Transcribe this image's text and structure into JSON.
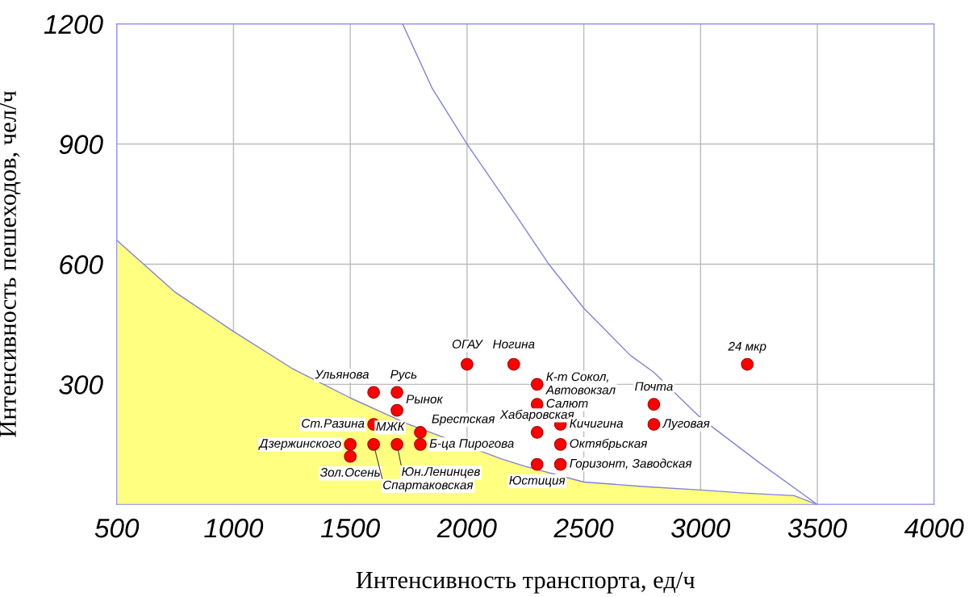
{
  "chart_data": {
    "type": "scatter",
    "xlabel": "Интенсивность транспорта, ед/ч",
    "ylabel": "Интенсивность пешеходов, чел/ч",
    "xlim": [
      500,
      4000
    ],
    "ylim": [
      0,
      1200
    ],
    "xticks": [
      500,
      1000,
      1500,
      2000,
      2500,
      3000,
      3500,
      4000
    ],
    "yticks": [
      {
        "value": 0,
        "label": null
      },
      300,
      600,
      900,
      1200
    ],
    "grid": true,
    "series": [
      {
        "type": "area",
        "color": "#ffff80",
        "x": [
          500,
          750,
          1000,
          1250,
          1500,
          1750,
          2150,
          2250,
          2500,
          2750,
          3000,
          3200,
          3400,
          3500
        ],
        "values": [
          660,
          530,
          432,
          340,
          266,
          200,
          113,
          95,
          56,
          45,
          36,
          28,
          22,
          0
        ]
      },
      {
        "type": "line",
        "color": "#8080e0",
        "x": [
          1724,
          1850,
          2000,
          2200,
          2350,
          2500,
          2700,
          2800,
          3000,
          3250,
          3500
        ],
        "values": [
          1200,
          1040,
          900,
          730,
          600,
          490,
          372,
          330,
          216,
          105,
          0
        ]
      },
      {
        "marker": "circle",
        "color": "#ff0000",
        "x": [
          2000,
          2200,
          2300,
          2300,
          2300,
          2400,
          2400,
          2400,
          2300,
          2800,
          2800,
          3200,
          1600,
          1700,
          1700,
          1600,
          1800,
          1500,
          1500,
          1700,
          1600,
          1800
        ],
        "values": [
          350,
          350,
          300,
          250,
          180,
          200,
          150,
          100,
          100,
          250,
          200,
          350,
          280,
          280,
          235,
          200,
          180,
          150,
          120,
          150,
          150,
          150
        ]
      }
    ],
    "annotations": [
      {
        "text": "ОГАУ",
        "x": 2000,
        "y": 350
      },
      {
        "text": "Ногина",
        "x": 2200,
        "y": 350
      },
      {
        "text": "К-т Сокол,\nАвтовокзал",
        "x": 2300,
        "y": 300
      },
      {
        "text": "Салют",
        "x": 2300,
        "y": 250
      },
      {
        "text": "Хабаровская",
        "x": 2300,
        "y": 180
      },
      {
        "text": "Кичигина",
        "x": 2400,
        "y": 200
      },
      {
        "text": "Октябрьская",
        "x": 2400,
        "y": 150
      },
      {
        "text": "Горизонт, Заводская",
        "x": 2400,
        "y": 100
      },
      {
        "text": "Юстиция",
        "x": 2300,
        "y": 100
      },
      {
        "text": "Почта",
        "x": 2800,
        "y": 250
      },
      {
        "text": "Луговая",
        "x": 2800,
        "y": 200
      },
      {
        "text": "24 мкр",
        "x": 3200,
        "y": 350
      },
      {
        "text": "Ульянова",
        "x": 1600,
        "y": 280
      },
      {
        "text": "Русь",
        "x": 1700,
        "y": 280
      },
      {
        "text": "Рынок",
        "x": 1700,
        "y": 235
      },
      {
        "text": "Ст.Разина",
        "x": 1600,
        "y": 200
      },
      {
        "text": "Брестская",
        "x": 1800,
        "y": 180
      },
      {
        "text": "Дзержинского",
        "x": 1500,
        "y": 150
      },
      {
        "text": "Зол.Осень",
        "x": 1500,
        "y": 120
      },
      {
        "text": "МЖК",
        "x": 1700,
        "y": 150
      },
      {
        "text": "Юн.Ленинцев",
        "x": 1700,
        "y": 150
      },
      {
        "text": "Спартаковская",
        "x": 1600,
        "y": 150
      },
      {
        "text": "Б-ца Пирогова",
        "x": 1800,
        "y": 150
      }
    ]
  }
}
